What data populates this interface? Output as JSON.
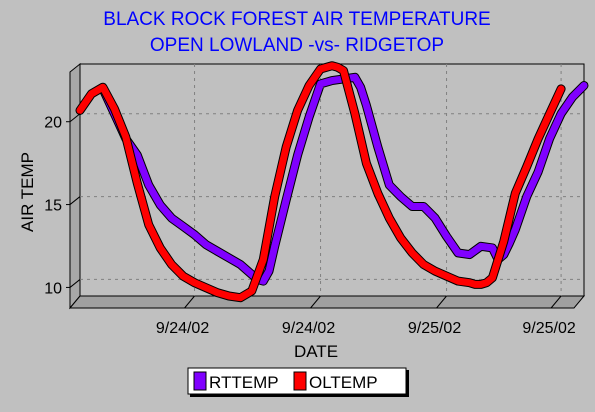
{
  "chart_data": {
    "type": "line",
    "title_lines": [
      "BLACK ROCK FOREST AIR TEMPERATURE",
      "OPEN LOWLAND -vs- RIDGETOP"
    ],
    "xlabel": "DATE",
    "ylabel": "AIR TEMP",
    "x_unit": "hours",
    "xlim": [
      0,
      44
    ],
    "ylim": [
      9,
      23
    ],
    "yticks": [
      10,
      15,
      20
    ],
    "xticks": [
      {
        "x": 10,
        "label": "9/24/02"
      },
      {
        "x": 21,
        "label": "9/24/02"
      },
      {
        "x": 32,
        "label": "9/25/02"
      },
      {
        "x": 42,
        "label": "9/25/02"
      }
    ],
    "grid": true,
    "legend_position": "bottom",
    "colors": {
      "title": "#0000ff",
      "RTTEMP": "#8000ff",
      "OLTEMP": "#ff0000",
      "background": "#c0c0c0"
    },
    "series": [
      {
        "name": "RTTEMP",
        "x": [
          2,
          3,
          4,
          5,
          6,
          7,
          8,
          9,
          10,
          11,
          12,
          13,
          14,
          15,
          15.5,
          16,
          16.5,
          17,
          18,
          19,
          20,
          21,
          22,
          23,
          24,
          24.5,
          25,
          26,
          27,
          28,
          29,
          30,
          31,
          32,
          33,
          34,
          35,
          36,
          36.5,
          37,
          37.5,
          38,
          39,
          40,
          41,
          42,
          43,
          44
        ],
        "y": [
          21.5,
          20,
          18.5,
          17.5,
          15.7,
          14.5,
          13.7,
          13.2,
          12.7,
          12.1,
          11.7,
          11.3,
          10.9,
          10.3,
          10.0,
          9.9,
          10.5,
          12,
          14.8,
          17.5,
          19.8,
          21.8,
          22,
          22.1,
          22.2,
          21.6,
          20.5,
          18,
          15.7,
          15,
          14.4,
          14.4,
          13.7,
          12.6,
          11.6,
          11.5,
          12.0,
          11.9,
          11.2,
          11.5,
          12.2,
          13,
          15,
          16.5,
          18.5,
          20,
          21,
          21.7
        ]
      },
      {
        "name": "OLTEMP",
        "x": [
          0,
          1,
          2,
          3,
          4,
          5,
          6,
          7,
          8,
          9,
          10,
          11,
          12,
          13,
          14,
          15,
          16,
          17,
          18,
          19,
          20,
          21,
          22,
          22.5,
          23,
          24,
          25,
          26,
          27,
          28,
          29,
          30,
          31,
          32,
          33,
          34,
          34.5,
          35,
          35.5,
          36,
          37,
          38,
          39,
          40,
          41,
          42
        ],
        "y": [
          20.2,
          21.2,
          21.6,
          20.3,
          18.6,
          15.8,
          13.3,
          11.9,
          10.9,
          10.2,
          9.8,
          9.5,
          9.2,
          9.0,
          8.9,
          9.3,
          11.2,
          15,
          18,
          20.2,
          21.7,
          22.7,
          22.9,
          22.8,
          22.6,
          20,
          17,
          15.2,
          13.7,
          12.5,
          11.6,
          10.9,
          10.5,
          10.2,
          9.9,
          9.8,
          9.7,
          9.7,
          9.8,
          10.1,
          12.3,
          15.2,
          16.8,
          18.5,
          20,
          21.5
        ]
      }
    ]
  }
}
